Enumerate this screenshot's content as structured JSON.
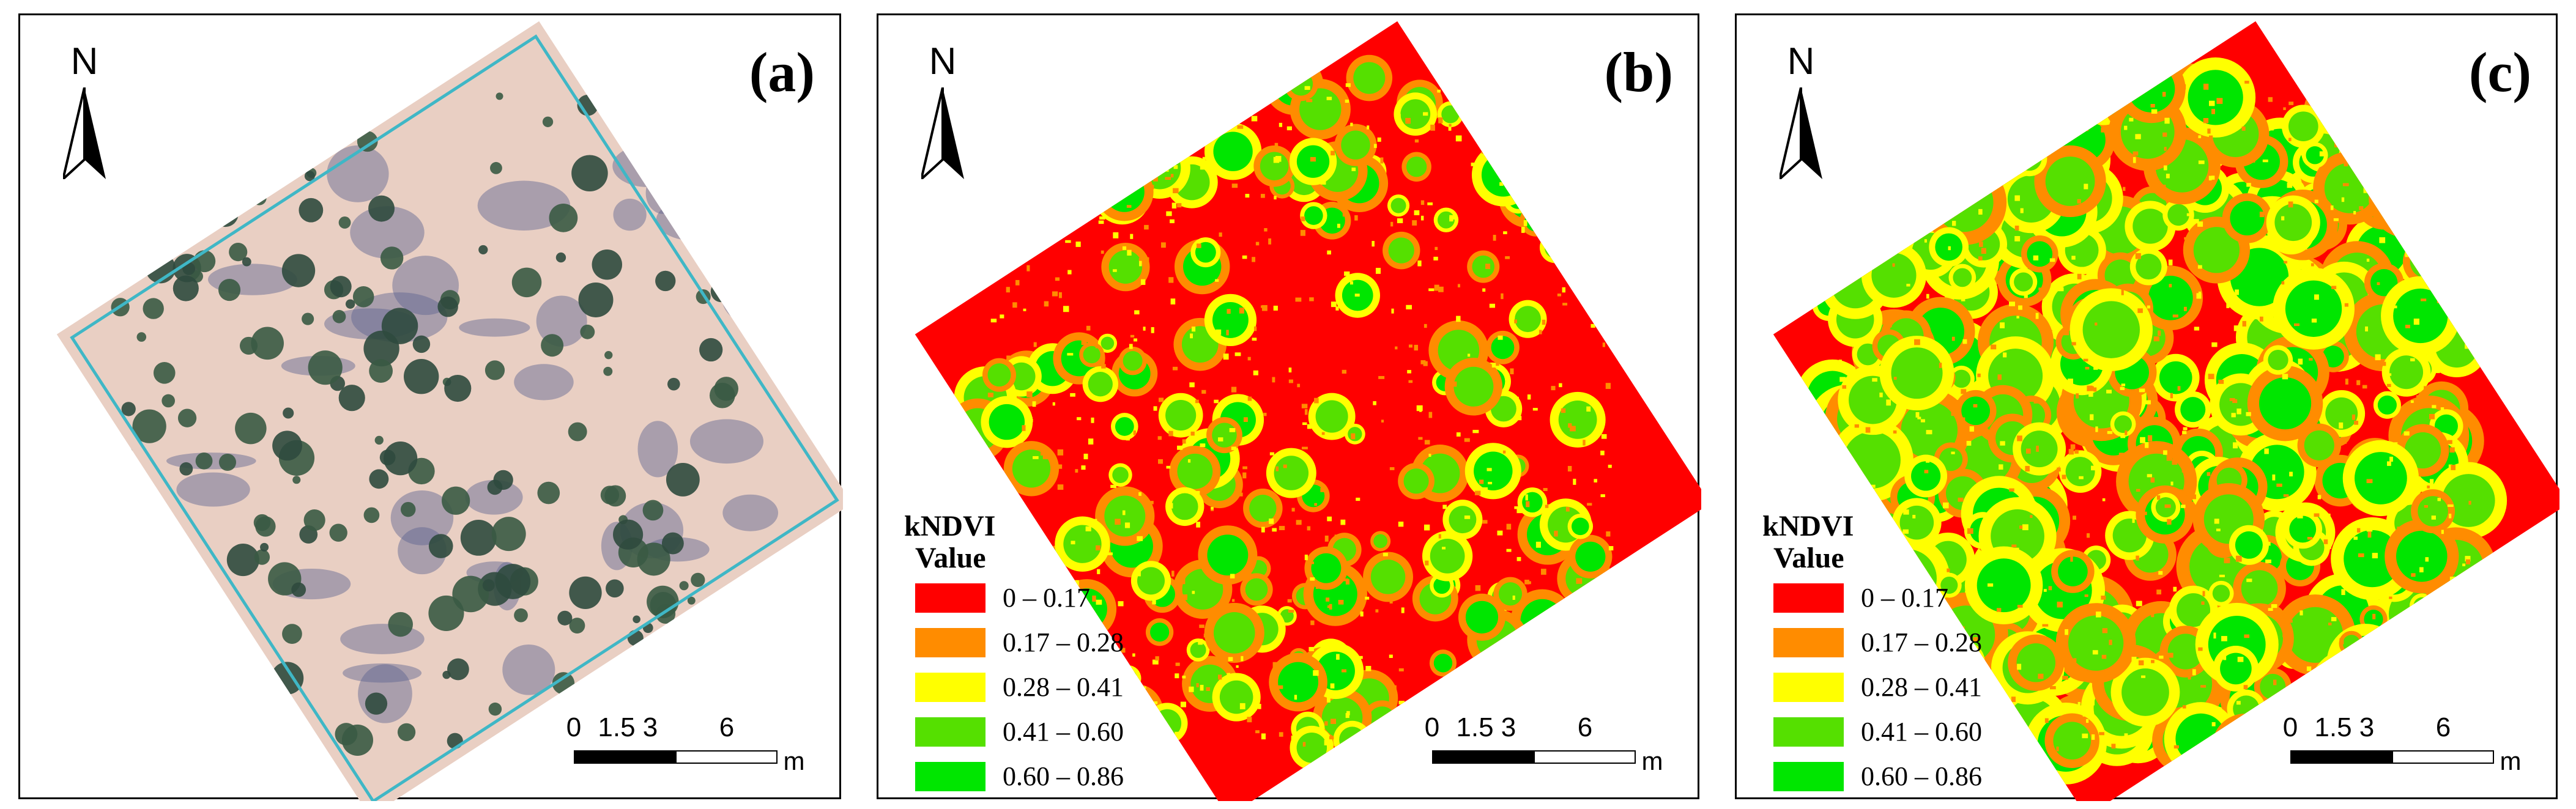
{
  "panels": [
    {
      "label": "(a)",
      "type": "rgb-orthophoto"
    },
    {
      "label": "(b)",
      "type": "kndvi-classified",
      "scene": "low-vegetation"
    },
    {
      "label": "(c)",
      "type": "kndvi-classified",
      "scene": "high-vegetation"
    }
  ],
  "north_arrow": {
    "label": "N"
  },
  "legend": {
    "title_line1": "kNDVI",
    "title_line2": "Value",
    "classes": [
      {
        "label": "0 – 0.17",
        "color": "#ff0000"
      },
      {
        "label": "0.17 – 0.28",
        "color": "#ff8c00"
      },
      {
        "label": "0.28 – 0.41",
        "color": "#ffff00"
      },
      {
        "label": "0.41 – 0.60",
        "color": "#55e000"
      },
      {
        "label": "0.60 – 0.86",
        "color": "#00e600"
      }
    ]
  },
  "scale_bar": {
    "ticks": [
      "0",
      "1.5",
      "3",
      "6"
    ],
    "unit": "m"
  },
  "colors": {
    "sand": "#e9cfc3",
    "shrub": "#2f4a3e",
    "shadow": "#5a6290",
    "border_cyan": "#3fb7c6"
  }
}
